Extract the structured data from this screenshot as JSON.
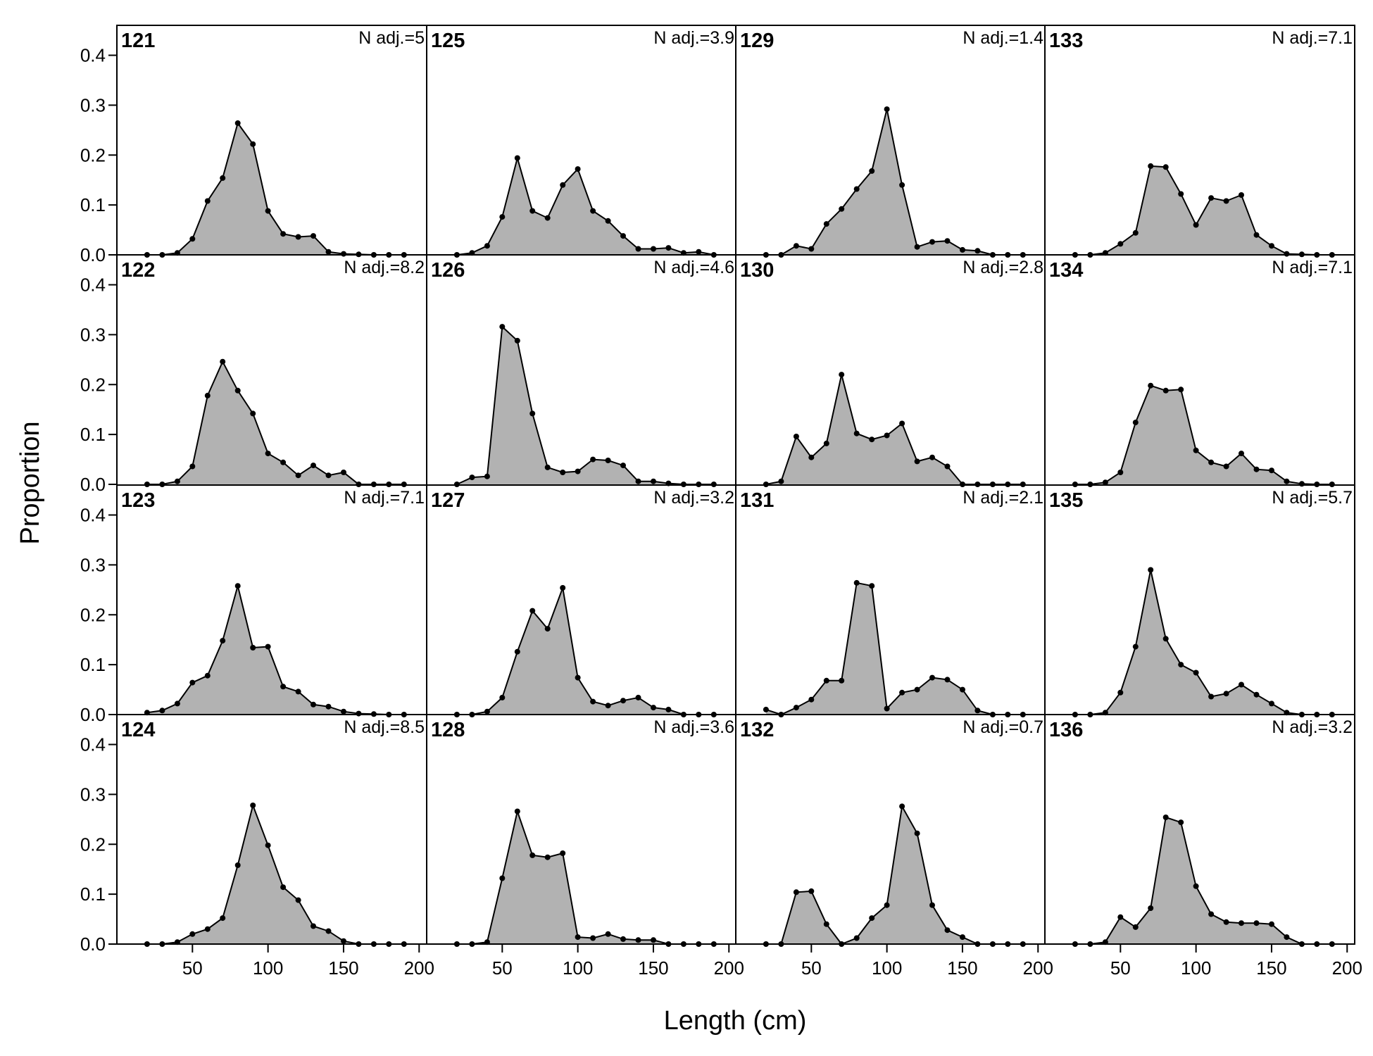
{
  "chart_data": {
    "type": "area",
    "layout": "4x4 panel grid, columns filled top-to-bottom",
    "xlabel": "Length (cm)",
    "ylabel": "Proportion",
    "xlim": [
      0,
      205
    ],
    "ylim": [
      0,
      0.46
    ],
    "x_ticks": [
      50,
      100,
      150,
      200
    ],
    "x_tick_labels": [
      "50",
      "100",
      "150",
      "200"
    ],
    "y_ticks": [
      0,
      0.1,
      0.2,
      0.3,
      0.4
    ],
    "y_tick_labels": [
      "0.0",
      "0.1",
      "0.2",
      "0.3",
      "0.4"
    ],
    "grid": false,
    "fill_color": "#b2b2b2",
    "line_color": "#000000",
    "x": [
      20,
      30,
      40,
      50,
      60,
      70,
      80,
      90,
      100,
      110,
      120,
      130,
      140,
      150,
      160,
      170,
      180,
      190
    ],
    "panels": [
      {
        "id": "121",
        "n_adj": "N adj.=5",
        "values": [
          0,
          0,
          0.004,
          0.032,
          0.108,
          0.154,
          0.264,
          0.222,
          0.088,
          0.042,
          0.036,
          0.038,
          0.006,
          0.002,
          0.001,
          0,
          0,
          0
        ]
      },
      {
        "id": "122",
        "n_adj": "N adj.=8.2",
        "values": [
          0,
          0,
          0.006,
          0.036,
          0.178,
          0.246,
          0.188,
          0.142,
          0.062,
          0.044,
          0.018,
          0.038,
          0.018,
          0.024,
          0,
          0,
          0,
          0
        ]
      },
      {
        "id": "123",
        "n_adj": "N adj.=7.1",
        "values": [
          0.004,
          0.008,
          0.022,
          0.064,
          0.078,
          0.148,
          0.258,
          0.134,
          0.136,
          0.056,
          0.046,
          0.02,
          0.016,
          0.006,
          0.002,
          0.001,
          0,
          0
        ]
      },
      {
        "id": "124",
        "n_adj": "N adj.=8.5",
        "values": [
          0,
          0,
          0.004,
          0.02,
          0.03,
          0.052,
          0.158,
          0.278,
          0.198,
          0.114,
          0.088,
          0.036,
          0.026,
          0.006,
          0,
          0,
          0,
          0
        ]
      },
      {
        "id": "125",
        "n_adj": "N adj.=3.9",
        "values": [
          0,
          0.004,
          0.018,
          0.076,
          0.194,
          0.088,
          0.074,
          0.14,
          0.172,
          0.088,
          0.068,
          0.038,
          0.012,
          0.012,
          0.014,
          0.004,
          0.006,
          0
        ]
      },
      {
        "id": "126",
        "n_adj": "N adj.=4.6",
        "values": [
          0,
          0.014,
          0.016,
          0.316,
          0.288,
          0.142,
          0.034,
          0.024,
          0.026,
          0.05,
          0.048,
          0.038,
          0.006,
          0.006,
          0.002,
          0,
          0,
          0
        ]
      },
      {
        "id": "127",
        "n_adj": "N adj.=3.2",
        "values": [
          0,
          0,
          0.006,
          0.034,
          0.126,
          0.208,
          0.172,
          0.254,
          0.074,
          0.026,
          0.018,
          0.028,
          0.034,
          0.014,
          0.01,
          0,
          0,
          0
        ]
      },
      {
        "id": "128",
        "n_adj": "N adj.=3.6",
        "values": [
          0,
          0,
          0.004,
          0.132,
          0.266,
          0.178,
          0.174,
          0.182,
          0.014,
          0.012,
          0.02,
          0.01,
          0.008,
          0.008,
          0,
          0,
          0,
          0
        ]
      },
      {
        "id": "129",
        "n_adj": "N adj.=1.4",
        "values": [
          0,
          0,
          0.018,
          0.012,
          0.062,
          0.092,
          0.132,
          0.168,
          0.292,
          0.14,
          0.016,
          0.026,
          0.028,
          0.01,
          0.008,
          0,
          0,
          0
        ]
      },
      {
        "id": "130",
        "n_adj": "N adj.=2.8",
        "values": [
          0,
          0.006,
          0.096,
          0.054,
          0.082,
          0.22,
          0.102,
          0.09,
          0.098,
          0.122,
          0.046,
          0.054,
          0.036,
          0,
          0,
          0,
          0,
          0
        ]
      },
      {
        "id": "131",
        "n_adj": "N adj.=2.1",
        "values": [
          0.01,
          0,
          0.014,
          0.03,
          0.068,
          0.068,
          0.264,
          0.258,
          0.012,
          0.044,
          0.05,
          0.074,
          0.07,
          0.05,
          0.008,
          0,
          0,
          0
        ]
      },
      {
        "id": "132",
        "n_adj": "N adj.=0.7",
        "values": [
          0,
          0,
          0.104,
          0.106,
          0.04,
          0,
          0.012,
          0.052,
          0.078,
          0.276,
          0.222,
          0.078,
          0.028,
          0.014,
          0,
          0,
          0,
          0
        ]
      },
      {
        "id": "133",
        "n_adj": "N adj.=7.1",
        "values": [
          0,
          0,
          0.004,
          0.022,
          0.044,
          0.178,
          0.176,
          0.122,
          0.06,
          0.114,
          0.108,
          0.12,
          0.04,
          0.018,
          0.002,
          0.001,
          0,
          0
        ]
      },
      {
        "id": "134",
        "n_adj": "N adj.=7.1",
        "values": [
          0,
          0,
          0.004,
          0.024,
          0.124,
          0.198,
          0.188,
          0.19,
          0.068,
          0.044,
          0.036,
          0.062,
          0.03,
          0.028,
          0.006,
          0.001,
          0,
          0
        ]
      },
      {
        "id": "135",
        "n_adj": "N adj.=5.7",
        "values": [
          0,
          0,
          0.004,
          0.044,
          0.136,
          0.29,
          0.152,
          0.1,
          0.084,
          0.036,
          0.042,
          0.06,
          0.04,
          0.022,
          0.004,
          0,
          0,
          0
        ]
      },
      {
        "id": "136",
        "n_adj": "N adj.=3.2",
        "values": [
          0,
          0,
          0.004,
          0.054,
          0.034,
          0.072,
          0.254,
          0.244,
          0.116,
          0.06,
          0.044,
          0.042,
          0.042,
          0.04,
          0.014,
          0,
          0,
          0
        ]
      }
    ]
  }
}
